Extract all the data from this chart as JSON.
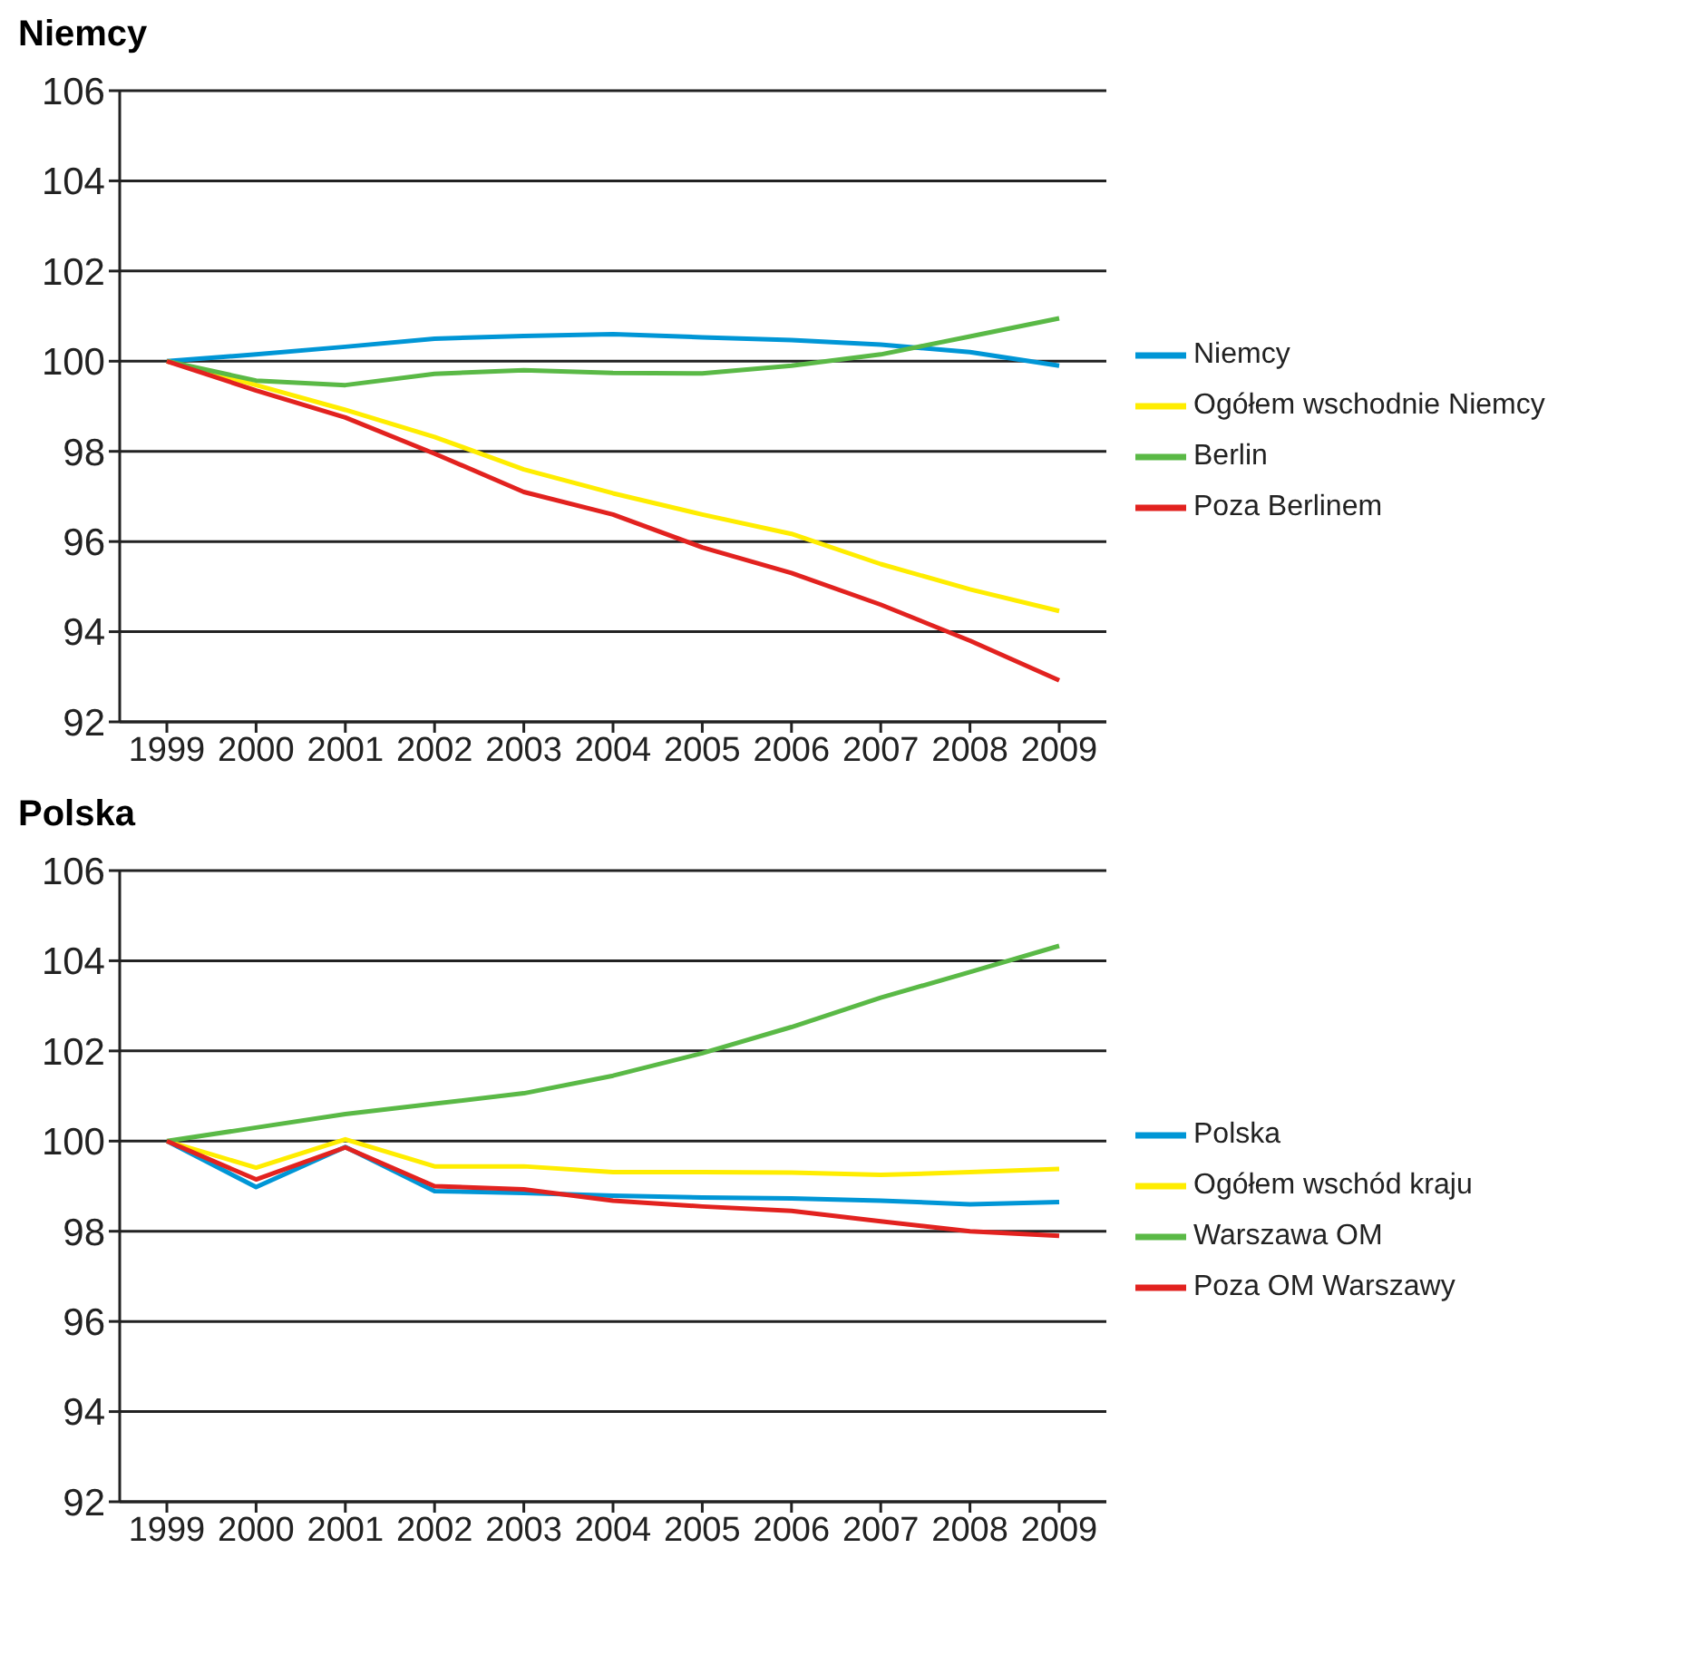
{
  "chart_data": [
    {
      "type": "line",
      "title": "Niemcy",
      "categories": [
        "1999",
        "2000",
        "2001",
        "2002",
        "2003",
        "2004",
        "2005",
        "2006",
        "2007",
        "2008",
        "2009"
      ],
      "series": [
        {
          "name": "Niemcy",
          "color": "#0096d6",
          "values": [
            100,
            100.15,
            100.32,
            100.5,
            100.56,
            100.6,
            100.53,
            100.47,
            100.37,
            100.2,
            99.9
          ]
        },
        {
          "name": "Ogółem wschodnie Niemcy",
          "color": "#ffed00",
          "values": [
            100,
            99.47,
            98.92,
            98.32,
            97.6,
            97.07,
            96.6,
            96.17,
            95.5,
            94.94,
            94.46
          ]
        },
        {
          "name": "Berlin",
          "color": "#5ab946",
          "values": [
            100,
            99.57,
            99.47,
            99.72,
            99.8,
            99.74,
            99.73,
            99.9,
            100.15,
            100.55,
            100.95
          ]
        },
        {
          "name": "Poza Berlinem",
          "color": "#e2221f",
          "values": [
            100,
            99.35,
            98.75,
            97.95,
            97.1,
            96.6,
            95.87,
            95.3,
            94.6,
            93.8,
            92.92
          ]
        }
      ],
      "ylim": [
        92,
        106
      ],
      "yticks": [
        92,
        94,
        96,
        98,
        100,
        102,
        104,
        106
      ],
      "grid": "y",
      "legend": "right",
      "marker": "none",
      "line_style": "solid"
    },
    {
      "type": "line",
      "title": "Polska",
      "categories": [
        "1999",
        "2000",
        "2001",
        "2002",
        "2003",
        "2004",
        "2005",
        "2006",
        "2007",
        "2008",
        "2009"
      ],
      "series": [
        {
          "name": "Polska",
          "color": "#0096d6",
          "values": [
            100,
            98.98,
            99.87,
            98.89,
            98.85,
            98.79,
            98.75,
            98.73,
            98.68,
            98.6,
            98.65
          ]
        },
        {
          "name": "Ogółem wschód kraju",
          "color": "#ffed00",
          "values": [
            100,
            99.41,
            100.04,
            99.44,
            99.44,
            99.31,
            99.31,
            99.3,
            99.25,
            99.31,
            99.38
          ]
        },
        {
          "name": "Warszawa OM",
          "color": "#5ab946",
          "values": [
            100,
            100.3,
            100.6,
            100.83,
            101.06,
            101.45,
            101.95,
            102.53,
            103.18,
            103.75,
            104.33
          ]
        },
        {
          "name": "Poza OM Warszawy",
          "color": "#e2221f",
          "values": [
            100,
            99.15,
            99.86,
            99.0,
            98.93,
            98.68,
            98.55,
            98.45,
            98.22,
            98.0,
            97.9
          ]
        }
      ],
      "ylim": [
        92,
        106
      ],
      "yticks": [
        92,
        94,
        96,
        98,
        100,
        102,
        104,
        106
      ],
      "grid": "y",
      "legend": "right",
      "marker": "none",
      "line_style": "solid"
    }
  ]
}
